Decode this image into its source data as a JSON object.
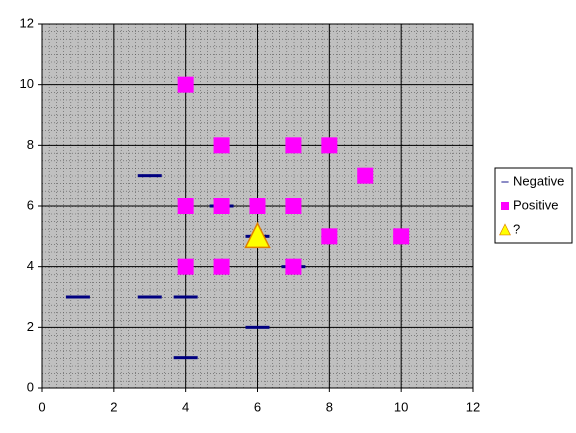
{
  "chart_data": {
    "type": "scatter",
    "series": [
      {
        "name": "Negative",
        "color": "#000080",
        "marker": "dash",
        "x": [
          3,
          5,
          6,
          7,
          1,
          3,
          4,
          6,
          4
        ],
        "y": [
          7,
          6,
          5,
          4,
          3,
          3,
          3,
          2,
          1
        ]
      },
      {
        "name": "Positive",
        "color": "#ff00ff",
        "marker": "square",
        "x": [
          4,
          5,
          7,
          8,
          9,
          4,
          5,
          6,
          7,
          8,
          10,
          4,
          5,
          7
        ],
        "y": [
          10,
          8,
          8,
          8,
          7,
          6,
          6,
          6,
          6,
          5,
          5,
          4,
          4,
          4
        ]
      },
      {
        "name": "?",
        "color": "#ffff00",
        "marker": "triangle",
        "x": [
          6
        ],
        "y": [
          5
        ]
      }
    ],
    "xlim": [
      0,
      12
    ],
    "ylim": [
      0,
      12
    ],
    "xticks": [
      0,
      2,
      4,
      6,
      8,
      10,
      12
    ],
    "yticks": [
      0,
      2,
      4,
      6,
      8,
      10,
      12
    ],
    "grid": true,
    "legend": "right",
    "plot_background": "#c0c0c0"
  }
}
